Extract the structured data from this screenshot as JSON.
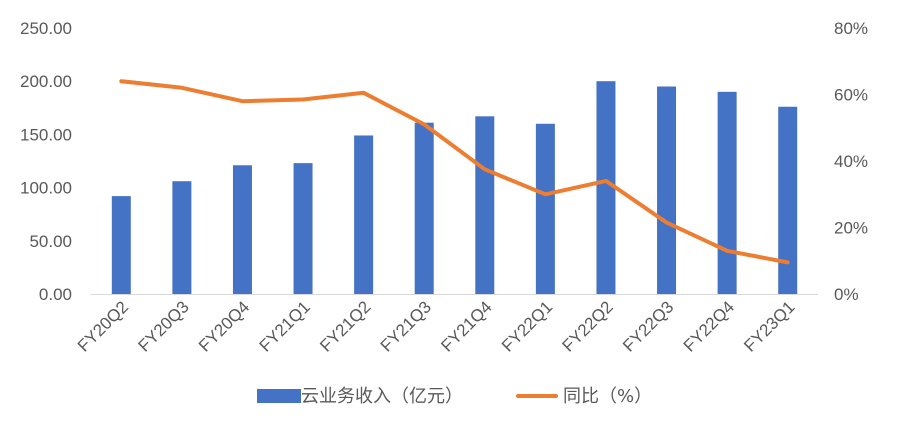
{
  "chart_data": {
    "type": "bar",
    "categories": [
      "FY20Q2",
      "FY20Q3",
      "FY20Q4",
      "FY21Q1",
      "FY21Q2",
      "FY21Q3",
      "FY21Q4",
      "FY22Q1",
      "FY22Q2",
      "FY22Q3",
      "FY22Q4",
      "FY23Q1"
    ],
    "series": [
      {
        "name": "云业务收入（亿元）",
        "type": "bar",
        "axis": "left",
        "color": "#4472C4",
        "values": [
          92,
          106,
          121,
          123,
          149,
          161,
          167,
          160,
          200,
          195,
          190,
          176
        ]
      },
      {
        "name": "同比（%）",
        "type": "line",
        "axis": "right",
        "color": "#ED7D31",
        "values": [
          64,
          62,
          58,
          58.5,
          60.5,
          51,
          37.5,
          30,
          34,
          21.5,
          13,
          9.5
        ]
      }
    ],
    "y_left": {
      "ylim": [
        0,
        250
      ],
      "ticks": [
        "0.00",
        "50.00",
        "100.00",
        "150.00",
        "200.00",
        "250.00"
      ]
    },
    "y_right": {
      "ylim": [
        0,
        80
      ],
      "ticks": [
        "0%",
        "20%",
        "40%",
        "60%",
        "80%"
      ]
    },
    "legend_position": "bottom",
    "grid": false
  }
}
